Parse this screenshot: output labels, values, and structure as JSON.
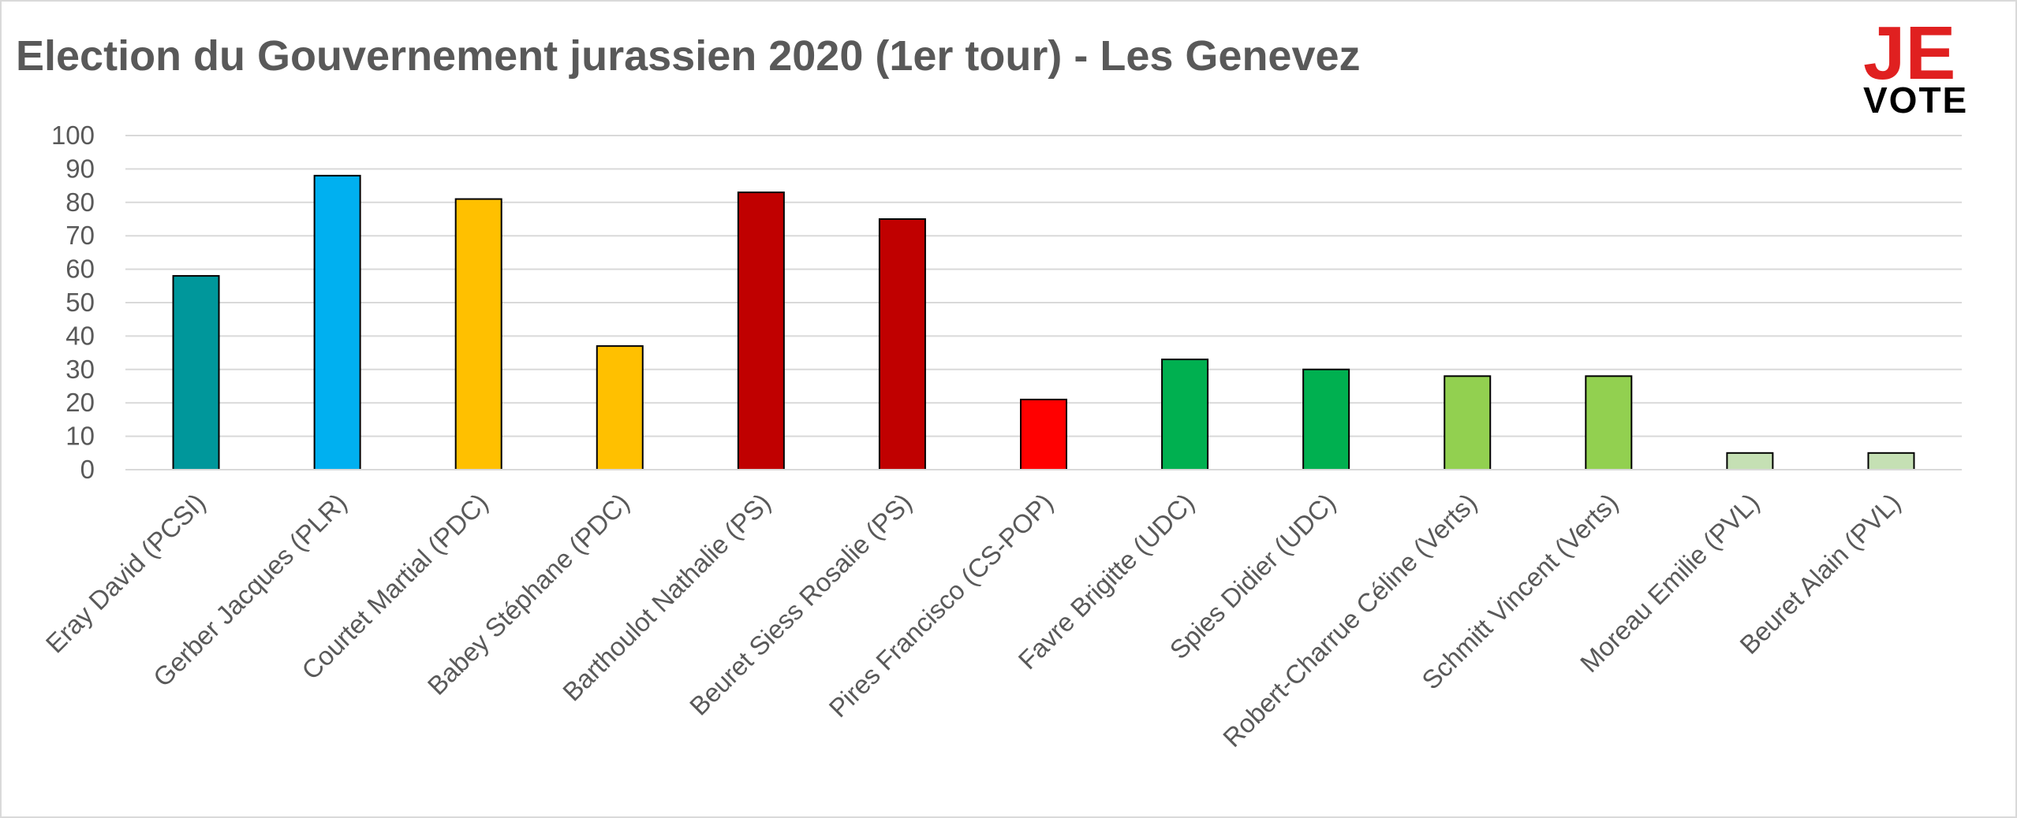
{
  "chart_data": {
    "type": "bar",
    "title": "Election du Gouvernement jurassien 2020 (1er tour) - Les Genevez",
    "xlabel": "",
    "ylabel": "",
    "ylim": [
      0,
      100
    ],
    "yticks": [
      0,
      10,
      20,
      30,
      40,
      50,
      60,
      70,
      80,
      90,
      100
    ],
    "grid": true,
    "categories": [
      "Eray David (PCSI)",
      "Gerber Jacques (PLR)",
      "Courtet Martial (PDC)",
      "Babey Stéphane (PDC)",
      "Barthoulot Nathalie (PS)",
      "Beuret Siess Rosalie (PS)",
      "Pires Francisco (CS-POP)",
      "Favre Brigitte (UDC)",
      "Spies Didier (UDC)",
      "Robert-Charrue Céline (Verts)",
      "Schmitt Vincent (Verts)",
      "Moreau Emilie (PVL)",
      "Beuret Alain (PVL)"
    ],
    "values": [
      58,
      88,
      81,
      37,
      83,
      75,
      21,
      33,
      30,
      28,
      28,
      5,
      5
    ],
    "colors": [
      "#00979b",
      "#00b0f0",
      "#ffc000",
      "#ffc000",
      "#c00000",
      "#c00000",
      "#ff0000",
      "#00b050",
      "#00b050",
      "#92d050",
      "#92d050",
      "#c5e0b4",
      "#c5e0b4"
    ]
  },
  "logo": {
    "top": "JE",
    "bottom": "VOTE"
  }
}
